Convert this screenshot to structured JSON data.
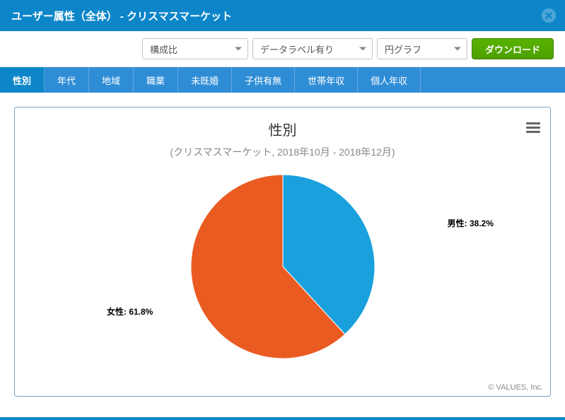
{
  "titlebar": {
    "title": "ユーザー属性（全体） - クリスマスマーケット"
  },
  "toolbar": {
    "select_ratio": "構成比",
    "select_label": "データラベル有り",
    "select_chart": "円グラフ",
    "download": "ダウンロード"
  },
  "tabs": [
    {
      "label": "性別",
      "active": true
    },
    {
      "label": "年代",
      "active": false
    },
    {
      "label": "地域",
      "active": false
    },
    {
      "label": "職業",
      "active": false
    },
    {
      "label": "未既婚",
      "active": false
    },
    {
      "label": "子供有無",
      "active": false
    },
    {
      "label": "世帯年収",
      "active": false
    },
    {
      "label": "個人年収",
      "active": false
    }
  ],
  "chart": {
    "type": "pie",
    "title": "性別",
    "subtitle": "(クリスマスマーケット, 2018年10月 - 2018年12月)",
    "title_fontsize": 20,
    "subtitle_fontsize": 14,
    "subtitle_color": "#888888",
    "background_color": "#ffffff",
    "border_color": "#7aa3c9",
    "slices": [
      {
        "name": "男性",
        "value": 38.2,
        "color": "#1aa1dd",
        "label": "男性: 38.2%"
      },
      {
        "name": "女性",
        "value": 61.8,
        "color": "#ea5b21",
        "label": "女性: 61.8%"
      }
    ],
    "label_fontsize": 12,
    "label_fontweight": "bold",
    "credit": "© VALUES, Inc."
  }
}
